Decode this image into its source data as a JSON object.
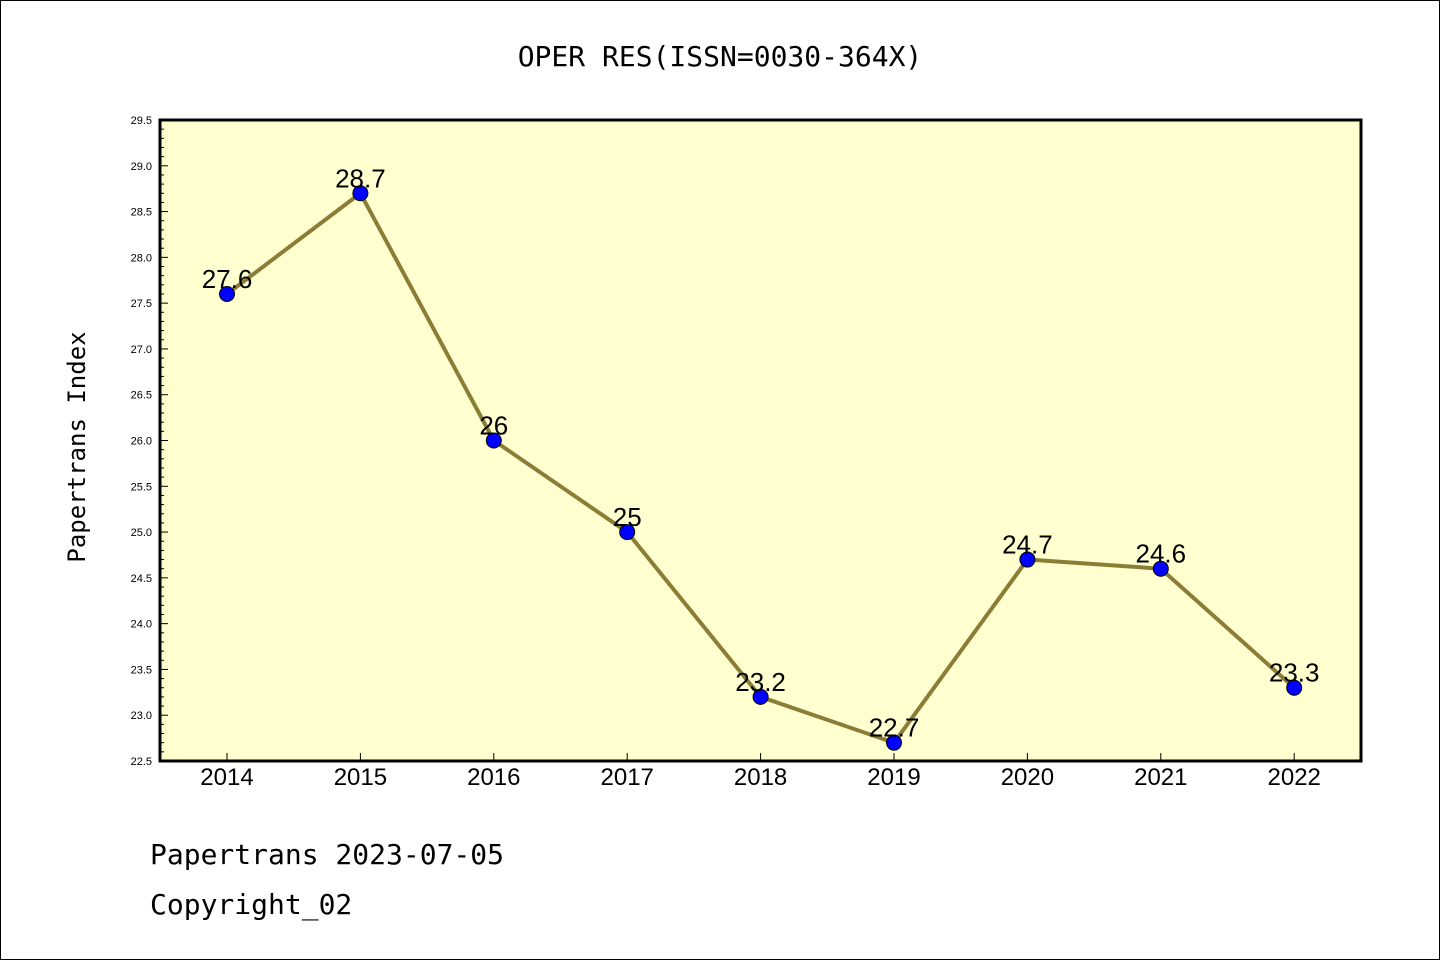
{
  "chart_data": {
    "type": "line",
    "title": "OPER RES(ISSN=0030-364X)",
    "xlabel": "",
    "ylabel": "Papertrans Index",
    "categories": [
      "2014",
      "2015",
      "2016",
      "2017",
      "2018",
      "2019",
      "2020",
      "2021",
      "2022"
    ],
    "values": [
      27.6,
      28.7,
      26,
      25,
      23.2,
      22.7,
      24.7,
      24.6,
      23.3
    ],
    "data_labels": [
      "27.6",
      "28.7",
      "26",
      "25",
      "23.2",
      "22.7",
      "24.7",
      "24.6",
      "23.3"
    ],
    "ylim": [
      22.5,
      29.5
    ],
    "yticks": [
      "22.5",
      "23.0",
      "23.5",
      "24.0",
      "24.5",
      "25.0",
      "25.5",
      "26.0",
      "26.5",
      "27.0",
      "27.5",
      "28.0",
      "28.5",
      "29.0",
      "29.5"
    ],
    "grid": false,
    "colors": {
      "plot_background": "#ffffd0",
      "line": "#8b7d36",
      "marker": "#0000ff"
    }
  },
  "footer": {
    "line1": "Papertrans 2023-07-05",
    "line2": "Copyright_02"
  }
}
